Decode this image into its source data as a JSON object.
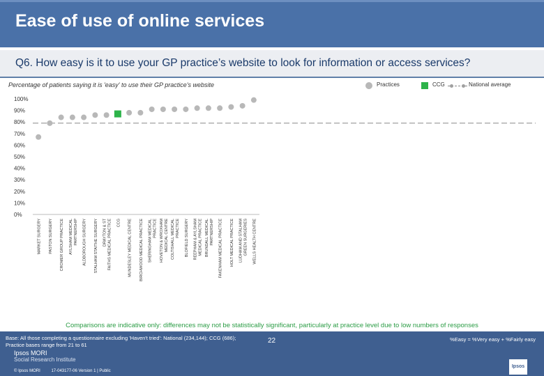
{
  "header": {
    "title": "Ease of use of online services",
    "question": "Q6. How easy is it to use your GP practice’s website to look for information or access services?"
  },
  "subtitle": "Percentage of patients saying it is 'easy' to use their GP practice's website",
  "legend": {
    "practices": "Practices",
    "ccg": "CCG",
    "national": "National average"
  },
  "colors": {
    "practice": "#b8b8b8",
    "ccg": "#2db34a",
    "national": "#888888",
    "header": "#4a71a8",
    "note": "#2b9c45"
  },
  "chart_data": {
    "type": "scatter",
    "y_ticks": [
      "100%",
      "90%",
      "80%",
      "70%",
      "60%",
      "50%",
      "40%",
      "30%",
      "20%",
      "10%",
      "0%"
    ],
    "ylim": [
      0,
      100
    ],
    "national_average": 79,
    "categories": [
      "MARKET SURGERY",
      "PASTON SURGERY",
      "CROMER GROUP PRACTICE",
      "AYLSHAM MEDICAL PARTNERSHIP",
      "ALDBOROUGH SURGERY",
      "STALHAM STAITHE SURGERY",
      "DRAYTON & ST FAITHS MEDICAL PRACTICE",
      "CCG",
      "MUNDESLEY MEDICAL CENTRE",
      "BIRCHWOOD MEDICAL PRACTICE",
      "SHERINGHAM MEDICAL PRACTICE",
      "HOVETON & WROXHAM MEDICAL CENTRE",
      "COLTISHALL MEDICAL PRACTICE",
      "BLOFIELD SURGERY",
      "REEPHAM & AYLSHAM MEDICAL PRACTICE",
      "BRUNDALL MEDICAL PARTNERSHIP",
      "FAKENHAM MEDICAL PRACTICE",
      "HOLT MEDICAL PRACTICE",
      "LUDHAM AND STALHAM GREEN SURGERIES",
      "WELLS HEALTH CENTRE"
    ],
    "values": [
      67,
      79,
      84,
      84,
      84,
      86,
      86,
      87,
      88,
      88,
      91,
      91,
      91,
      91,
      92,
      92,
      92,
      93,
      94,
      99
    ],
    "highlight": "CCG"
  },
  "note": "Comparisons are indicative only: differences may not be statistically significant, particularly at practice level due to low numbers of responses",
  "footer": {
    "base_line1": "Base: All those completing a questionnaire excluding 'Haven't tried': National (234,144); CCG (686);",
    "base_line2": "Practice bases range from 21 to 61",
    "formula": "%Easy = %Very easy + %Fairly easy",
    "page_number": "22",
    "brand_line1": "Ipsos MORI",
    "brand_line2": "Social Research Institute",
    "copyright": "© Ipsos MORI",
    "version": "17-043177-06 Version 1 | Public",
    "logo_text": "Ipsos"
  }
}
